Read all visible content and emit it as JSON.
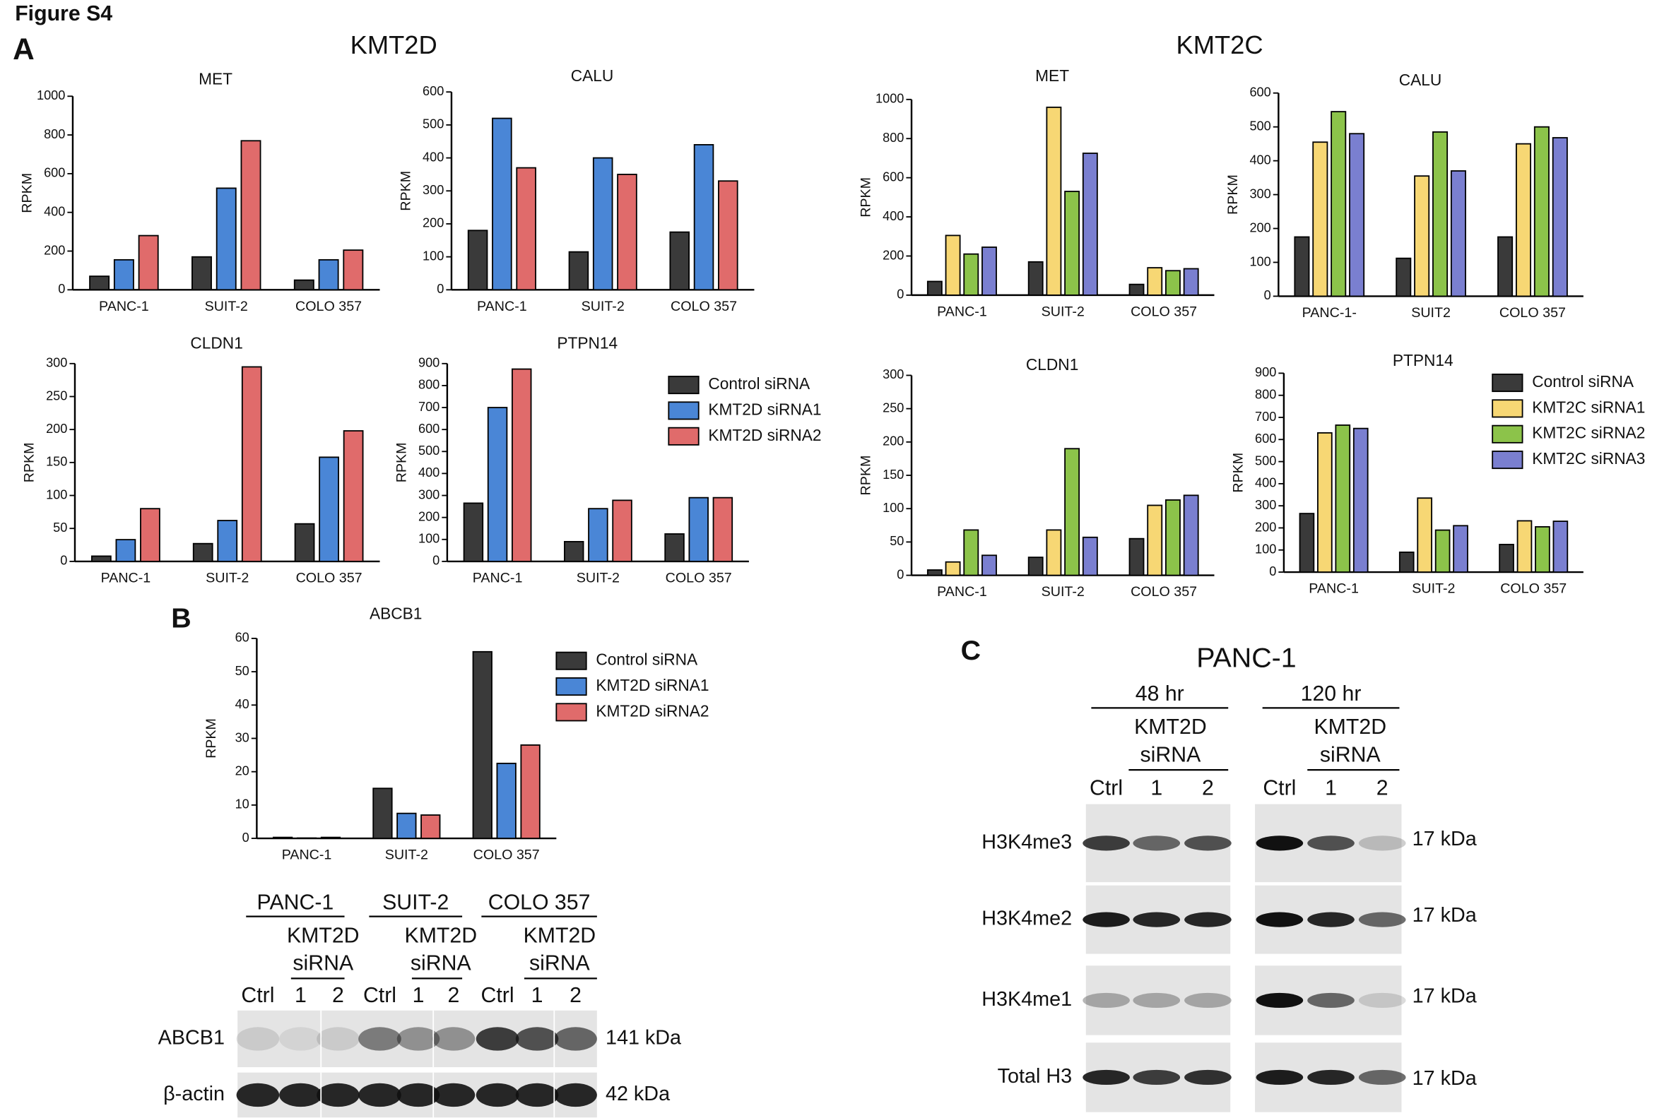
{
  "figure_title": "Figure S4",
  "panel_labels": [
    "A",
    "B",
    "C"
  ],
  "group_titles": [
    "KMT2D",
    "KMT2C"
  ],
  "chart_data": [
    {
      "type": "bar",
      "title": "MET",
      "ylabel": "RPKM",
      "categories": [
        "PANC-1",
        "SUIT-2",
        "COLO 357"
      ],
      "series": [
        {
          "color": "#3a3a3a",
          "values": [
            70,
            170,
            50
          ]
        },
        {
          "color": "#4a86d6",
          "values": [
            155,
            525,
            155
          ]
        },
        {
          "color": "#e06b6b",
          "values": [
            280,
            770,
            205
          ]
        }
      ],
      "ylim": [
        0,
        1000
      ],
      "yticks": [
        0,
        200,
        400,
        600,
        800,
        1000
      ]
    },
    {
      "type": "bar",
      "title": "CALU",
      "ylabel": "RPKM",
      "categories": [
        "PANC-1",
        "SUIT-2",
        "COLO 357"
      ],
      "series": [
        {
          "color": "#3a3a3a",
          "values": [
            180,
            115,
            175
          ]
        },
        {
          "color": "#4a86d6",
          "values": [
            520,
            400,
            440
          ]
        },
        {
          "color": "#e06b6b",
          "values": [
            370,
            350,
            330
          ]
        }
      ],
      "ylim": [
        0,
        600
      ],
      "yticks": [
        0,
        100,
        200,
        300,
        400,
        500,
        600
      ]
    },
    {
      "type": "bar",
      "title": "CLDN1",
      "ylabel": "RPKM",
      "categories": [
        "PANC-1",
        "SUIT-2",
        "COLO 357"
      ],
      "series": [
        {
          "color": "#3a3a3a",
          "values": [
            8,
            27,
            57
          ]
        },
        {
          "color": "#4a86d6",
          "values": [
            33,
            62,
            158
          ]
        },
        {
          "color": "#e06b6b",
          "values": [
            80,
            295,
            198
          ]
        }
      ],
      "ylim": [
        0,
        300
      ],
      "yticks": [
        0,
        50,
        100,
        150,
        200,
        250,
        300
      ]
    },
    {
      "type": "bar",
      "title": "PTPN14",
      "ylabel": "RPKM",
      "categories": [
        "PANC-1",
        "SUIT-2",
        "COLO 357"
      ],
      "series": [
        {
          "name": "Control siRNA",
          "color": "#3a3a3a",
          "values": [
            265,
            90,
            125
          ]
        },
        {
          "name": "KMT2D siRNA1",
          "color": "#4a86d6",
          "values": [
            700,
            240,
            290
          ]
        },
        {
          "name": "KMT2D siRNA2",
          "color": "#e06b6b",
          "values": [
            875,
            278,
            290
          ]
        }
      ],
      "ylim": [
        0,
        900
      ],
      "yticks": [
        0,
        100,
        200,
        300,
        400,
        500,
        600,
        700,
        800,
        900
      ]
    },
    {
      "type": "bar",
      "title": "MET",
      "ylabel": "RPKM",
      "categories": [
        "PANC-1",
        "SUIT-2",
        "COLO 357"
      ],
      "series": [
        {
          "color": "#3a3a3a",
          "values": [
            70,
            170,
            55
          ]
        },
        {
          "color": "#f7d774",
          "values": [
            305,
            960,
            140
          ]
        },
        {
          "color": "#8cc34a",
          "values": [
            210,
            530,
            125
          ]
        },
        {
          "color": "#7a7fd0",
          "values": [
            245,
            725,
            135
          ]
        }
      ],
      "ylim": [
        0,
        1000
      ],
      "yticks": [
        0,
        200,
        400,
        600,
        800,
        1000
      ]
    },
    {
      "type": "bar",
      "title": "CALU",
      "ylabel": "RPKM",
      "categories": [
        "PANC-1-",
        "SUIT2",
        "COLO 357"
      ],
      "series": [
        {
          "color": "#3a3a3a",
          "values": [
            175,
            112,
            175
          ]
        },
        {
          "color": "#f7d774",
          "values": [
            455,
            355,
            450
          ]
        },
        {
          "color": "#8cc34a",
          "values": [
            545,
            485,
            500
          ]
        },
        {
          "color": "#7a7fd0",
          "values": [
            480,
            370,
            468
          ]
        }
      ],
      "ylim": [
        0,
        600
      ],
      "yticks": [
        0,
        100,
        200,
        300,
        400,
        500,
        600
      ]
    },
    {
      "type": "bar",
      "title": "CLDN1",
      "ylabel": "RPKM",
      "categories": [
        "PANC-1",
        "SUIT-2",
        "COLO 357"
      ],
      "series": [
        {
          "color": "#3a3a3a",
          "values": [
            8,
            27,
            55
          ]
        },
        {
          "color": "#f7d774",
          "values": [
            20,
            68,
            105
          ]
        },
        {
          "color": "#8cc34a",
          "values": [
            68,
            190,
            113
          ]
        },
        {
          "color": "#7a7fd0",
          "values": [
            30,
            57,
            120
          ]
        }
      ],
      "ylim": [
        0,
        300
      ],
      "yticks": [
        0,
        50,
        100,
        150,
        200,
        250,
        300
      ]
    },
    {
      "type": "bar",
      "title": "PTPN14",
      "ylabel": "RPKM",
      "categories": [
        "PANC-1",
        "SUIT-2",
        "COLO 357"
      ],
      "series": [
        {
          "name": "Control siRNA",
          "color": "#3a3a3a",
          "values": [
            265,
            90,
            125
          ]
        },
        {
          "name": "KMT2C siRNA1",
          "color": "#f7d774",
          "values": [
            630,
            335,
            232
          ]
        },
        {
          "name": "KMT2C siRNA2",
          "color": "#8cc34a",
          "values": [
            665,
            190,
            205
          ]
        },
        {
          "name": "KMT2C siRNA3",
          "color": "#7a7fd0",
          "values": [
            650,
            210,
            230
          ]
        }
      ],
      "ylim": [
        0,
        900
      ],
      "yticks": [
        0,
        100,
        200,
        300,
        400,
        500,
        600,
        700,
        800,
        900
      ]
    },
    {
      "type": "bar",
      "title": "ABCB1",
      "ylabel": "RPKM",
      "categories": [
        "PANC-1",
        "SUIT-2",
        "COLO 357"
      ],
      "series": [
        {
          "name": "Control siRNA",
          "color": "#3a3a3a",
          "values": [
            0.3,
            15,
            56
          ]
        },
        {
          "name": "KMT2D siRNA1",
          "color": "#4a86d6",
          "values": [
            0.1,
            7.5,
            22.5
          ]
        },
        {
          "name": "KMT2D siRNA2",
          "color": "#e06b6b",
          "values": [
            0.3,
            7,
            28
          ]
        }
      ],
      "ylim": [
        0,
        60
      ],
      "yticks": [
        0,
        10,
        20,
        30,
        40,
        50,
        60
      ]
    }
  ],
  "panel_b_blot": {
    "groups": [
      {
        "name": "PANC-1",
        "treatment": [
          "KMT2D",
          "siRNA"
        ],
        "lanes": [
          "Ctrl",
          "1",
          "2"
        ]
      },
      {
        "name": "SUIT-2",
        "treatment": [
          "KMT2D",
          "siRNA"
        ],
        "lanes": [
          "Ctrl",
          "1",
          "2"
        ]
      },
      {
        "name": "COLO 357",
        "treatment": [
          "KMT2D",
          "siRNA"
        ],
        "lanes": [
          "Ctrl",
          "1",
          "2"
        ]
      }
    ],
    "rows": [
      {
        "name": "ABCB1",
        "size": "141 kDa"
      },
      {
        "name": "β-actin",
        "size": "42 kDa"
      }
    ]
  },
  "panel_c_blot": {
    "title": "PANC-1",
    "groups": [
      {
        "name": "48 hr",
        "treatment": [
          "KMT2D",
          "siRNA"
        ],
        "lanes": [
          "Ctrl",
          "1",
          "2"
        ]
      },
      {
        "name": "120 hr",
        "treatment": [
          "KMT2D",
          "siRNA"
        ],
        "lanes": [
          "Ctrl",
          "1",
          "2"
        ]
      }
    ],
    "rows": [
      {
        "name": "H3K4me3",
        "size": "17 kDa"
      },
      {
        "name": "H3K4me2",
        "size": "17 kDa"
      },
      {
        "name": "H3K4me1",
        "size": "17 kDa"
      },
      {
        "name": "Total H3",
        "size": "17 kDa"
      }
    ]
  }
}
